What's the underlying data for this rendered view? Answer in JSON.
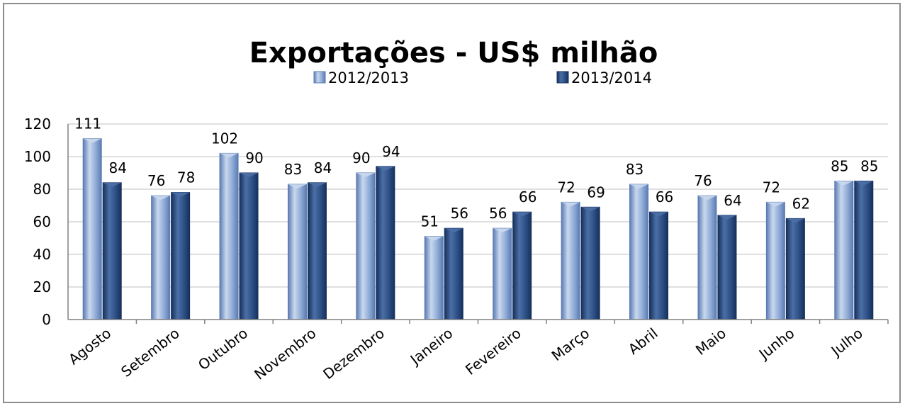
{
  "chart_data": {
    "type": "bar",
    "title": "Exportações - US$ milhão",
    "categories": [
      "Agosto",
      "Setembro",
      "Outubro",
      "Novembro",
      "Dezembro",
      "Janeiro",
      "Fevereiro",
      "Março",
      "Abril",
      "Maio",
      "Junho",
      "Julho"
    ],
    "series": [
      {
        "name": "2012/2013",
        "values": [
          111,
          76,
          102,
          83,
          90,
          51,
          56,
          72,
          83,
          76,
          72,
          85
        ]
      },
      {
        "name": "2013/2014",
        "values": [
          84,
          78,
          90,
          84,
          94,
          56,
          66,
          69,
          66,
          64,
          62,
          85
        ]
      }
    ],
    "ylim": [
      0,
      120
    ],
    "yticks": [
      0,
      20,
      40,
      60,
      80,
      100,
      120
    ],
    "grid": true,
    "legend_position": "top",
    "colors": {
      "series1_light": "#c9d8ee",
      "series1_mid": "#8eaad5",
      "series1_dark": "#5a7bb3",
      "series2_light": "#4b6fa6",
      "series2_mid": "#2c4f85",
      "series2_dark": "#16305c"
    }
  }
}
